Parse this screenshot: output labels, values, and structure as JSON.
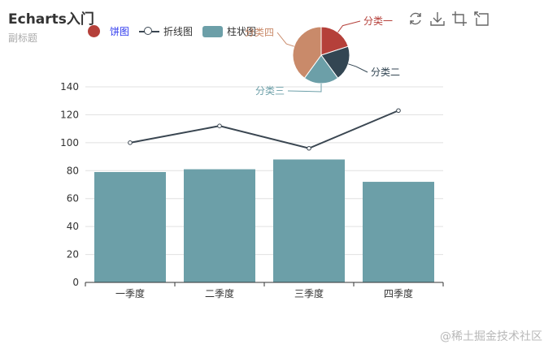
{
  "title": "Echarts入门",
  "subtitle": "副标题",
  "legend": [
    {
      "name": "饼图",
      "type": "circle",
      "color": "#b5403a",
      "text_color": "#2f3aee"
    },
    {
      "name": "折线图",
      "type": "line",
      "color": "#3a4651",
      "text_color": "#333333"
    },
    {
      "name": "柱状图",
      "type": "rect",
      "color": "#6c9fa8",
      "text_color": "#333333"
    }
  ],
  "toolbox": [
    {
      "name": "refresh-icon"
    },
    {
      "name": "download-icon"
    },
    {
      "name": "zoom-icon"
    },
    {
      "name": "zoom-reset-icon"
    }
  ],
  "watermark": "@稀土掘金技术社区",
  "chart_data": [
    {
      "type": "bar",
      "name": "柱状图",
      "categories": [
        "一季度",
        "二季度",
        "三季度",
        "四季度"
      ],
      "values": [
        79,
        81,
        88,
        72
      ],
      "color": "#6c9fa8",
      "ylim": [
        0,
        140
      ],
      "yticks": [
        0,
        20,
        40,
        60,
        80,
        100,
        120,
        140
      ],
      "grid": true
    },
    {
      "type": "line",
      "name": "折线图",
      "categories": [
        "一季度",
        "二季度",
        "三季度",
        "四季度"
      ],
      "values": [
        100,
        112,
        96,
        123
      ],
      "color": "#3a4651"
    },
    {
      "type": "pie",
      "name": "饼图",
      "slices": [
        {
          "label": "分类一",
          "value": 20,
          "color": "#b5403a"
        },
        {
          "label": "分类二",
          "value": 20,
          "color": "#334653"
        },
        {
          "label": "分类三",
          "value": 20,
          "color": "#6c9fa8"
        },
        {
          "label": "分类四",
          "value": 40,
          "color": "#c98a6a"
        }
      ]
    }
  ]
}
